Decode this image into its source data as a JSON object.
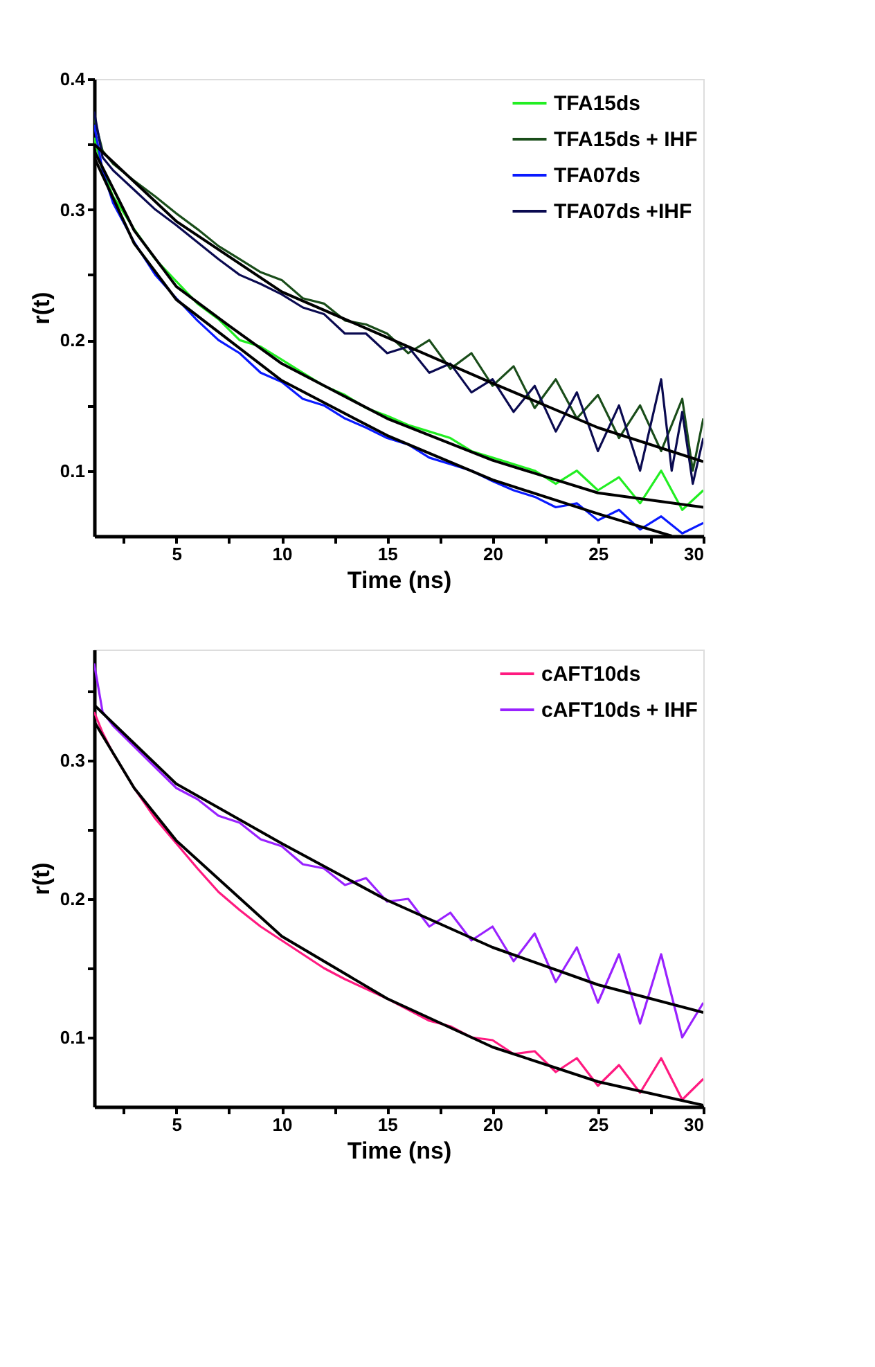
{
  "chart_data": [
    {
      "type": "line",
      "xlabel": "Time (ns)",
      "ylabel": "r(t)",
      "xlim": [
        1.1,
        30
      ],
      "ylim": [
        0.05,
        0.4
      ],
      "xticks": [
        {
          "value": 2.5,
          "label": null
        },
        5,
        {
          "value": 7.5,
          "label": null
        },
        10,
        {
          "value": 12.5,
          "label": null
        },
        15,
        {
          "value": 17.5,
          "label": null
        },
        20,
        {
          "value": 22.5,
          "label": null
        },
        25,
        {
          "value": 27.5,
          "label": null
        },
        30
      ],
      "yticks": [
        0.1,
        {
          "value": 0.15,
          "label": null
        },
        0.2,
        {
          "value": 0.25,
          "label": null
        },
        0.3,
        {
          "value": 0.35,
          "label": null
        },
        0.4
      ],
      "grid": false,
      "legend": "top right",
      "series": [
        {
          "name": "TFA15ds",
          "color": "#22ee22",
          "x": [
            1.1,
            1.5,
            2,
            3,
            4,
            5,
            6,
            7,
            8,
            9,
            10,
            11,
            12,
            13,
            14,
            15,
            16,
            17,
            18,
            19,
            20,
            21,
            22,
            23,
            24,
            25,
            26,
            27,
            28,
            29,
            30
          ],
          "values": [
            0.355,
            0.33,
            0.31,
            0.285,
            0.262,
            0.245,
            0.228,
            0.216,
            0.2,
            0.195,
            0.185,
            0.175,
            0.165,
            0.158,
            0.148,
            0.142,
            0.135,
            0.13,
            0.125,
            0.115,
            0.11,
            0.105,
            0.1,
            0.09,
            0.1,
            0.085,
            0.095,
            0.075,
            0.1,
            0.07,
            0.085
          ]
        },
        {
          "name": "TFA15ds + IHF",
          "color": "#1a4d1a",
          "x": [
            1.1,
            1.5,
            2,
            3,
            4,
            5,
            6,
            7,
            8,
            9,
            10,
            11,
            12,
            13,
            14,
            15,
            16,
            17,
            18,
            19,
            20,
            21,
            22,
            23,
            24,
            25,
            26,
            27,
            28,
            29,
            29.5,
            30
          ],
          "values": [
            0.37,
            0.345,
            0.335,
            0.322,
            0.31,
            0.297,
            0.285,
            0.272,
            0.262,
            0.252,
            0.246,
            0.232,
            0.228,
            0.215,
            0.212,
            0.205,
            0.19,
            0.2,
            0.178,
            0.19,
            0.165,
            0.18,
            0.148,
            0.17,
            0.14,
            0.158,
            0.125,
            0.15,
            0.115,
            0.155,
            0.1,
            0.14
          ]
        },
        {
          "name": "TFA07ds",
          "color": "#0a1aff",
          "x": [
            1.1,
            1.5,
            2,
            3,
            4,
            5,
            6,
            7,
            8,
            9,
            10,
            11,
            12,
            13,
            14,
            15,
            16,
            17,
            18,
            19,
            20,
            21,
            22,
            23,
            24,
            25,
            26,
            27,
            28,
            29,
            30
          ],
          "values": [
            0.365,
            0.33,
            0.305,
            0.275,
            0.25,
            0.232,
            0.215,
            0.2,
            0.19,
            0.175,
            0.168,
            0.155,
            0.15,
            0.14,
            0.133,
            0.125,
            0.12,
            0.11,
            0.105,
            0.1,
            0.092,
            0.085,
            0.08,
            0.072,
            0.075,
            0.062,
            0.07,
            0.055,
            0.065,
            0.052,
            0.06
          ]
        },
        {
          "name": "TFA07ds +IHF",
          "color": "#0a0a50",
          "x": [
            1.1,
            1.5,
            2,
            3,
            4,
            5,
            6,
            7,
            8,
            9,
            10,
            11,
            12,
            13,
            14,
            15,
            16,
            17,
            18,
            19,
            20,
            21,
            22,
            23,
            24,
            25,
            26,
            27,
            28,
            28.5,
            29,
            29.5,
            30
          ],
          "values": [
            0.375,
            0.34,
            0.33,
            0.315,
            0.3,
            0.288,
            0.275,
            0.262,
            0.25,
            0.243,
            0.235,
            0.225,
            0.22,
            0.205,
            0.205,
            0.19,
            0.195,
            0.175,
            0.182,
            0.16,
            0.17,
            0.145,
            0.165,
            0.13,
            0.16,
            0.115,
            0.15,
            0.1,
            0.17,
            0.1,
            0.145,
            0.09,
            0.125
          ]
        },
        {
          "color": "#000000",
          "x": [
            1.1,
            5,
            10,
            15,
            20,
            25,
            30
          ],
          "values": [
            0.35,
            0.291,
            0.237,
            0.202,
            0.167,
            0.133,
            0.107
          ]
        },
        {
          "color": "#000000",
          "x": [
            1.1,
            3,
            5,
            7.5,
            10,
            15,
            20,
            25,
            30
          ],
          "values": [
            0.345,
            0.284,
            0.241,
            0.211,
            0.182,
            0.14,
            0.108,
            0.083,
            0.072
          ]
        },
        {
          "color": "#000000",
          "x": [
            1.1,
            3,
            5,
            10,
            15,
            20,
            25,
            28.5
          ],
          "values": [
            0.34,
            0.274,
            0.231,
            0.169,
            0.127,
            0.093,
            0.067,
            0.05
          ]
        }
      ]
    },
    {
      "type": "line",
      "xlabel": "Time (ns)",
      "ylabel": "r(t)",
      "xlim": [
        1.1,
        30
      ],
      "ylim": [
        0.05,
        0.38
      ],
      "xticks": [
        {
          "value": 2.5,
          "label": null
        },
        5,
        {
          "value": 7.5,
          "label": null
        },
        10,
        {
          "value": 12.5,
          "label": null
        },
        15,
        {
          "value": 17.5,
          "label": null
        },
        20,
        {
          "value": 22.5,
          "label": null
        },
        25,
        {
          "value": 27.5,
          "label": null
        },
        30
      ],
      "yticks": [
        0.1,
        {
          "value": 0.15,
          "label": null
        },
        0.2,
        {
          "value": 0.25,
          "label": null
        },
        0.3,
        {
          "value": 0.35,
          "label": null
        }
      ],
      "grid": false,
      "legend": "top right",
      "series": [
        {
          "name": "cAFT10ds",
          "color": "#ff1a80",
          "x": [
            1.1,
            1.5,
            2,
            3,
            4,
            5,
            6,
            7,
            8,
            9,
            10,
            11,
            12,
            13,
            14,
            15,
            16,
            17,
            18,
            19,
            20,
            21,
            22,
            23,
            24,
            25,
            26,
            27,
            28,
            29,
            30
          ],
          "values": [
            0.335,
            0.32,
            0.305,
            0.28,
            0.258,
            0.24,
            0.222,
            0.205,
            0.192,
            0.18,
            0.17,
            0.16,
            0.15,
            0.142,
            0.135,
            0.128,
            0.12,
            0.112,
            0.108,
            0.1,
            0.098,
            0.088,
            0.09,
            0.075,
            0.085,
            0.065,
            0.08,
            0.06,
            0.085,
            0.055,
            0.07
          ]
        },
        {
          "name": "cAFT10ds + IHF",
          "color": "#9922ff",
          "x": [
            1.1,
            1.5,
            2,
            3,
            4,
            5,
            6,
            7,
            8,
            9,
            10,
            11,
            12,
            13,
            14,
            15,
            16,
            17,
            18,
            19,
            20,
            21,
            22,
            23,
            24,
            25,
            26,
            27,
            28,
            29,
            30
          ],
          "values": [
            0.37,
            0.335,
            0.325,
            0.31,
            0.295,
            0.28,
            0.272,
            0.26,
            0.255,
            0.243,
            0.238,
            0.225,
            0.222,
            0.21,
            0.215,
            0.198,
            0.2,
            0.18,
            0.19,
            0.17,
            0.18,
            0.155,
            0.175,
            0.14,
            0.165,
            0.125,
            0.16,
            0.11,
            0.16,
            0.1,
            0.125
          ]
        },
        {
          "color": "#000000",
          "x": [
            1.1,
            5,
            10,
            15,
            20,
            25,
            30
          ],
          "values": [
            0.34,
            0.283,
            0.24,
            0.199,
            0.165,
            0.138,
            0.118
          ]
        },
        {
          "color": "#000000",
          "x": [
            1.1,
            3,
            5,
            10,
            15,
            20,
            25,
            30
          ],
          "values": [
            0.328,
            0.28,
            0.242,
            0.173,
            0.128,
            0.093,
            0.068,
            0.051
          ]
        }
      ]
    }
  ]
}
